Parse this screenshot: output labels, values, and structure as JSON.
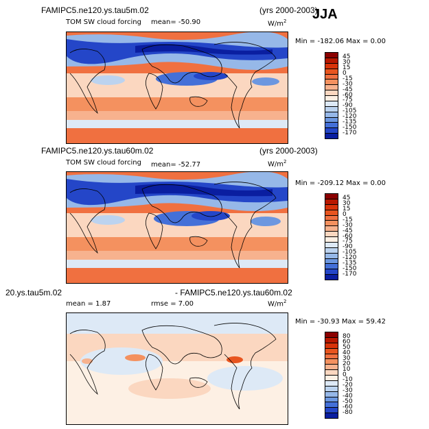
{
  "season": "JJA",
  "panels": [
    {
      "title": "FAMIPC5.ne120.ys.tau5m.02",
      "years": "(yrs 2000-2003)",
      "variable": "TOM SW cloud forcing",
      "stat1": "mean=  -50.90",
      "stat2": "",
      "units": "W/m",
      "units_sup": "2",
      "minmax": "Min = -182.06  Max =    0.00",
      "levels": [
        "45",
        "30",
        "15",
        "0",
        "-15",
        "-30",
        "-45",
        "-60",
        "-75",
        "-90",
        "-105",
        "-120",
        "-135",
        "-150",
        "-170"
      ],
      "colors": [
        "#8b0000",
        "#b81800",
        "#d8330a",
        "#e8551f",
        "#f07040",
        "#f4915f",
        "#f7b28e",
        "#fbd7c0",
        "#fdf0e4",
        "#dde9f6",
        "#bcd3ef",
        "#96b8e8",
        "#6c97e0",
        "#4470d8",
        "#2446c8",
        "#0a1ea0"
      ]
    },
    {
      "title": "FAMIPC5.ne120.ys.tau60m.02",
      "years": "(yrs 2000-2003)",
      "variable": "TOM SW cloud forcing",
      "stat1": "mean=  -52.77",
      "stat2": "",
      "units": "W/m",
      "units_sup": "2",
      "minmax": "Min = -209.12  Max =    0.00",
      "levels": [
        "45",
        "30",
        "15",
        "0",
        "-15",
        "-30",
        "-45",
        "-60",
        "-75",
        "-90",
        "-105",
        "-120",
        "-135",
        "-150",
        "-170"
      ],
      "colors": [
        "#8b0000",
        "#b81800",
        "#d8330a",
        "#e8551f",
        "#f07040",
        "#f4915f",
        "#f7b28e",
        "#fbd7c0",
        "#fdf0e4",
        "#dde9f6",
        "#bcd3ef",
        "#96b8e8",
        "#6c97e0",
        "#4470d8",
        "#2446c8",
        "#0a1ea0"
      ]
    },
    {
      "title": "20.ys.tau5m.02",
      "title2": "- FAMIPC5.ne120.ys.tau60m.02",
      "variable": "mean =    1.87",
      "stat1": "rmse =    7.00",
      "units": "W/m",
      "units_sup": "2",
      "minmax": "Min = -30.93  Max =  59.42",
      "levels": [
        "80",
        "60",
        "50",
        "40",
        "30",
        "20",
        "10",
        "0",
        "-10",
        "-20",
        "-30",
        "-40",
        "-50",
        "-60",
        "-80"
      ],
      "colors": [
        "#8b0000",
        "#b81800",
        "#d8330a",
        "#e8551f",
        "#f07040",
        "#f4915f",
        "#f7b28e",
        "#fbd7c0",
        "#fdf0e4",
        "#dde9f6",
        "#bcd3ef",
        "#96b8e8",
        "#6c97e0",
        "#4470d8",
        "#2446c8",
        "#0a1ea0"
      ]
    }
  ]
}
